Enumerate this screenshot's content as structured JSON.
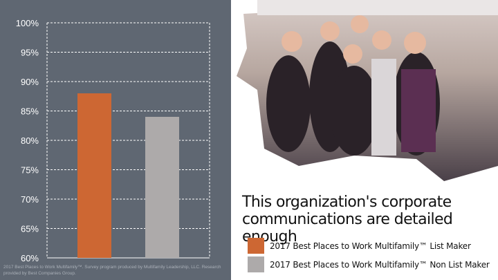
{
  "chart_data": {
    "type": "bar",
    "title": "This organization's corporate communications are detailed enough",
    "categories": [
      "2017 Best Places to Work Multifamily™ List Maker",
      "2017 Best Places to Work Multifamily™ Non List Maker"
    ],
    "values": [
      88,
      84
    ],
    "colors": [
      "#cd6733",
      "#adaaaa"
    ],
    "ylim": [
      60,
      100
    ],
    "yticks": [
      "60%",
      "65%",
      "70%",
      "75%",
      "80%",
      "85%",
      "90%",
      "95%",
      "100%"
    ],
    "grid": true,
    "legend_placement": "bottom-right",
    "source": "2017 Best Places to Work Multifamily™. Survey program produced by Multifamily Leadership, LLC. Research provided by Best Companies Group."
  },
  "photo": {
    "description_icon": "group-photo"
  }
}
